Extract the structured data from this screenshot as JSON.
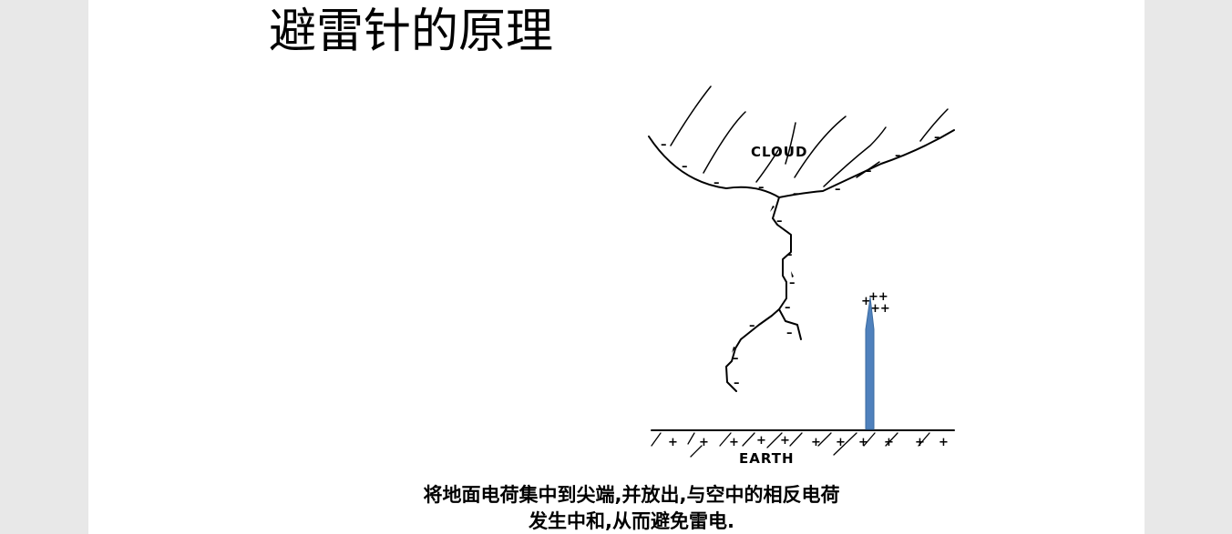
{
  "slide": {
    "title": "避雷针的原理",
    "diagram": {
      "cloud_label": "CLOUD",
      "earth_label": "EARTH",
      "rod_color": "#4f81bd"
    },
    "caption": {
      "line1": "将地面电荷集中到尖端,并放出,与空中的相反电荷",
      "line2": "发生中和,从而避免雷电."
    }
  }
}
